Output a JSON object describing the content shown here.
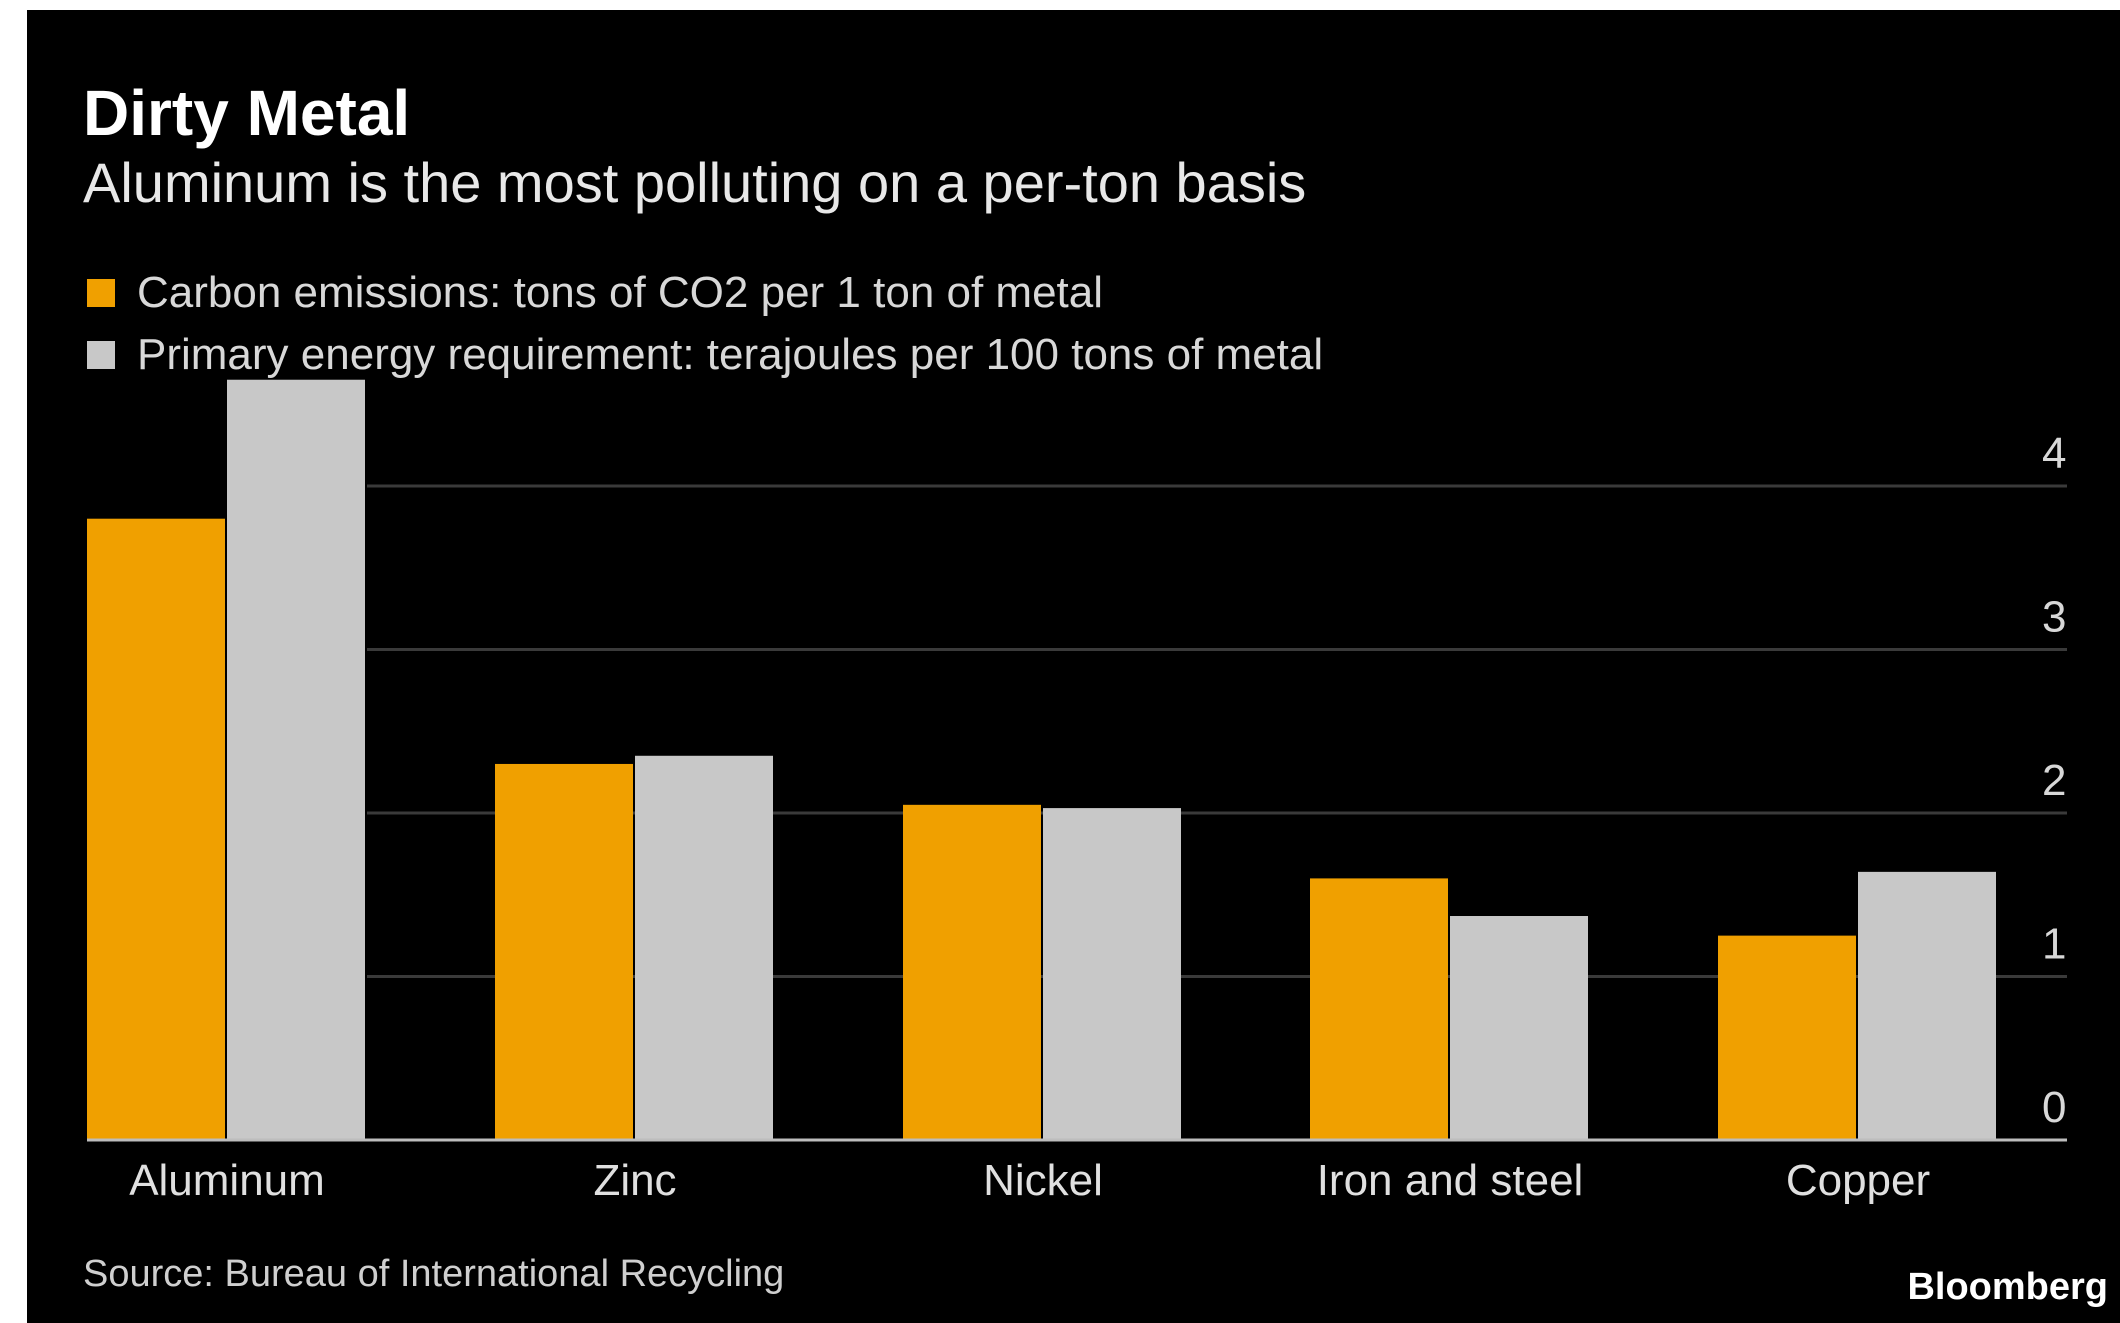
{
  "chart_data": {
    "type": "bar",
    "title": "Dirty Metal",
    "subtitle": "Aluminum is the most polluting on a per-ton basis",
    "categories": [
      "Aluminum",
      "Zinc",
      "Nickel",
      "Iron and steel",
      "Copper"
    ],
    "series": [
      {
        "name": "Carbon emissions: tons of CO2 per 1 ton of metal",
        "color": "#f0a000",
        "values": [
          3.8,
          2.3,
          2.05,
          1.6,
          1.25
        ]
      },
      {
        "name": "Primary energy requirement: terajoules per 100 tons of metal",
        "color": "#c8c8c8",
        "values": [
          4.65,
          2.35,
          2.03,
          1.37,
          1.64
        ]
      }
    ],
    "y_ticks": [
      "0",
      "1",
      "2",
      "3",
      "4"
    ],
    "ylim": [
      0,
      4.65
    ],
    "y_axis_side": "right",
    "grid": true,
    "legend_position": "top-left",
    "source": "Source: Bureau of International Recycling",
    "brand": "Bloomberg"
  }
}
